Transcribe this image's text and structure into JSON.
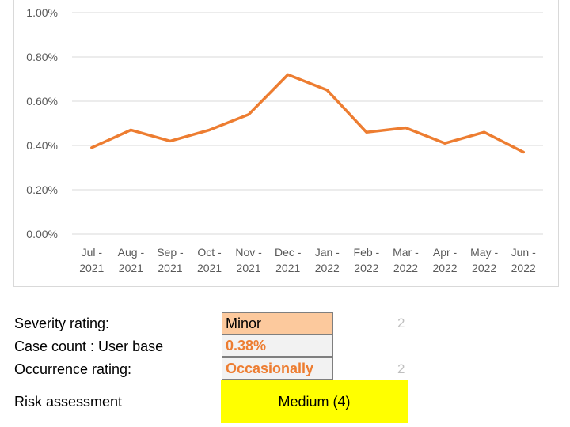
{
  "chart_data": {
    "type": "line",
    "categories": [
      [
        "Jul -",
        "2021"
      ],
      [
        "Aug -",
        "2021"
      ],
      [
        "Sep -",
        "2021"
      ],
      [
        "Oct -",
        "2021"
      ],
      [
        "Nov -",
        "2021"
      ],
      [
        "Dec -",
        "2021"
      ],
      [
        "Jan -",
        "2022"
      ],
      [
        "Feb -",
        "2022"
      ],
      [
        "Mar -",
        "2022"
      ],
      [
        "Apr -",
        "2022"
      ],
      [
        "May -",
        "2022"
      ],
      [
        "Jun -",
        "2022"
      ]
    ],
    "series": [
      {
        "values": [
          0.39,
          0.47,
          0.42,
          0.47,
          0.54,
          0.72,
          0.65,
          0.46,
          0.48,
          0.41,
          0.46,
          0.37
        ],
        "color": "#ed7d31"
      }
    ],
    "ylim": [
      0,
      1.0
    ],
    "yticks": [
      "0.00%",
      "0.20%",
      "0.40%",
      "0.60%",
      "0.80%",
      "1.00%"
    ],
    "grid": true,
    "legend": "none"
  },
  "assessment": {
    "severity_label": "Severity rating:",
    "severity_value": "Minor",
    "severity_score": "2",
    "case_label": "Case count : User base",
    "case_value": "0.38%",
    "occurrence_label": "Occurrence rating:",
    "occurrence_value": "Occasionally",
    "occurrence_score": "2",
    "risk_label": "Risk assessment",
    "risk_value": "Medium (4)"
  },
  "colors": {
    "severity_fill": "#fcc99d",
    "value_fill": "#f2f2f2",
    "orange_text": "#ed7d31",
    "risk_fill": "#ffff00"
  }
}
